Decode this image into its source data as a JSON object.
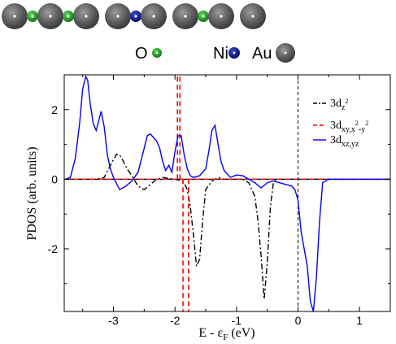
{
  "atom_chain": [
    "Au",
    "O",
    "Au",
    "O",
    "Au",
    "Au",
    "Ni",
    "Au",
    "Au",
    "O",
    "Au",
    "Au"
  ],
  "atom_key": [
    {
      "symbol": "O",
      "color": "#1fa61f",
      "icon": "oxygen-atom-icon"
    },
    {
      "symbol": "Ni",
      "color": "#001a99",
      "icon": "nickel-atom-icon"
    },
    {
      "symbol": "Au",
      "color": "#7a7a7a",
      "icon": "gold-atom-icon"
    }
  ],
  "chart_data": {
    "type": "line",
    "ylabel": "PDOS (arb. units)",
    "xlabel_main": "E - ε",
    "xlabel_sub": "F",
    "xlabel_unit": " (eV)",
    "xlim": [
      -3.8,
      1.5
    ],
    "ylim": [
      -3.8,
      3.0
    ],
    "x_ticks": [
      -3,
      -2,
      -1,
      0,
      1
    ],
    "x_tick_labels": [
      "-3",
      "-2",
      "-1",
      "0",
      "1"
    ],
    "y_ticks": [
      -2,
      0,
      2
    ],
    "y_tick_labels": [
      "-2",
      "0",
      "2"
    ],
    "fermi_level": 0,
    "zero_line": 0,
    "legend_position": "top-right",
    "series": [
      {
        "name": "3d",
        "sub": "z",
        "sup": "2",
        "color": "#000000",
        "dash": "dash-dot",
        "x": [
          -3.78,
          -3.5,
          -3.3,
          -3.15,
          -3.05,
          -2.95,
          -2.9,
          -2.85,
          -2.78,
          -2.7,
          -2.6,
          -2.5,
          -2.4,
          -2.3,
          -2.2,
          -2.1,
          -2.0,
          -1.95,
          -1.9,
          -1.85,
          -1.8,
          -1.75,
          -1.7,
          -1.65,
          -1.6,
          -1.55,
          -1.5,
          -1.4,
          -1.3,
          -1.2,
          -1.1,
          -1.0,
          -0.9,
          -0.8,
          -0.7,
          -0.65,
          -0.6,
          -0.55,
          -0.5,
          -0.45,
          -0.4,
          -0.35,
          -0.3,
          -0.2,
          0,
          0.5,
          1.0,
          1.5
        ],
        "y": [
          0,
          0,
          0,
          0.05,
          0.4,
          0.72,
          0.7,
          0.55,
          0.3,
          0.1,
          -0.2,
          -0.3,
          -0.15,
          0,
          0.05,
          0.02,
          0,
          -0.02,
          -0.05,
          -0.1,
          -0.3,
          -0.8,
          -1.6,
          -2.5,
          -2.3,
          -1.2,
          -0.3,
          -0.05,
          0.05,
          0,
          0,
          0,
          0,
          -0.1,
          -0.5,
          -1.2,
          -2.2,
          -3.45,
          -2.4,
          -0.8,
          -0.1,
          0,
          0,
          0,
          0,
          0,
          0,
          0
        ]
      },
      {
        "name": "3d",
        "sub": "xy,x",
        "sup": "2",
        "sub2": "-y",
        "sup2": "2",
        "color": "#ff0000",
        "dash": "dashed",
        "spikes": [
          {
            "x": -1.96,
            "from": 0,
            "to": 3.0
          },
          {
            "x": -1.92,
            "from": 0,
            "to": 3.0
          },
          {
            "x": -1.87,
            "from": 0,
            "to": -3.8
          },
          {
            "x": -1.78,
            "from": 0,
            "to": -3.8
          }
        ],
        "x": [
          -3.78,
          1.5
        ],
        "y": [
          0,
          0
        ]
      },
      {
        "name": "3d",
        "sub": "xz,yz",
        "color": "#0000ff",
        "dash": "solid",
        "x": [
          -3.78,
          -3.7,
          -3.62,
          -3.55,
          -3.5,
          -3.45,
          -3.42,
          -3.38,
          -3.33,
          -3.28,
          -3.2,
          -3.15,
          -3.1,
          -3.05,
          -3.0,
          -2.9,
          -2.8,
          -2.7,
          -2.6,
          -2.5,
          -2.45,
          -2.4,
          -2.35,
          -2.3,
          -2.25,
          -2.2,
          -2.15,
          -2.1,
          -2.05,
          -2.0,
          -1.95,
          -1.9,
          -1.85,
          -1.8,
          -1.75,
          -1.7,
          -1.6,
          -1.5,
          -1.45,
          -1.4,
          -1.35,
          -1.3,
          -1.25,
          -1.2,
          -1.1,
          -1.0,
          -0.9,
          -0.8,
          -0.7,
          -0.6,
          -0.5,
          -0.4,
          -0.3,
          -0.2,
          -0.1,
          -0.05,
          0,
          0.05,
          0.1,
          0.15,
          0.2,
          0.25,
          0.3,
          0.35,
          0.4,
          0.5,
          0.8,
          1.2,
          1.5
        ],
        "y": [
          0,
          0.05,
          0.6,
          1.6,
          2.6,
          2.95,
          2.85,
          2.2,
          1.6,
          1.4,
          1.95,
          1.5,
          0.7,
          0.3,
          0.05,
          -0.3,
          -0.2,
          -0.05,
          0.2,
          0.9,
          1.25,
          1.3,
          1.2,
          1.1,
          0.9,
          0.5,
          0.25,
          0.4,
          0.2,
          0.8,
          1.25,
          1.25,
          0.7,
          0.3,
          0.1,
          0.05,
          0.1,
          0.3,
          0.8,
          1.4,
          1.55,
          1.0,
          0.5,
          0.25,
          0.05,
          0.12,
          0.1,
          0,
          -0.1,
          -0.25,
          -0.1,
          -0.05,
          -0.1,
          -0.15,
          -0.2,
          -0.3,
          -0.6,
          -1.5,
          -2.0,
          -2.5,
          -3.5,
          -3.8,
          -2.8,
          -1.2,
          -0.1,
          0,
          0,
          0,
          0
        ]
      }
    ]
  }
}
